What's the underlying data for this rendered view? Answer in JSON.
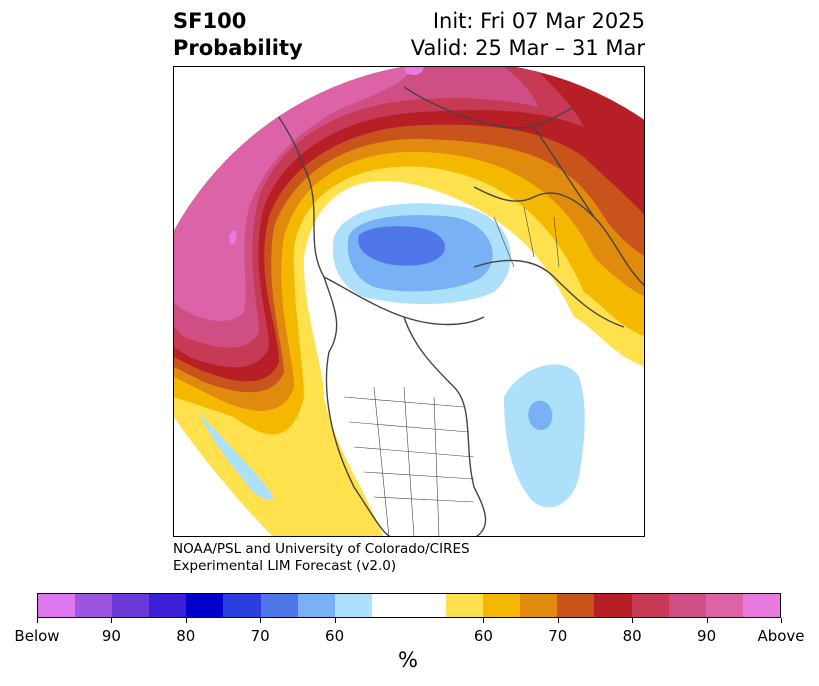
{
  "title": {
    "left_line1": "SF100",
    "left_line2": "Probability",
    "right_line1": "Init: Fri 07 Mar 2025",
    "right_line2": "Valid: 25 Mar – 31 Mar"
  },
  "credit": {
    "line1": "NOAA/PSL and University of Colorado/CIRES",
    "line2": "Experimental LIM Forecast (v2.0)"
  },
  "colorbar": {
    "colors": [
      "#dd77ee",
      "#9d55e0",
      "#6a39d8",
      "#3b1ed7",
      "#0000cc",
      "#2a3fdd",
      "#4f77ea",
      "#78b1f4",
      "#ade0fb",
      "#ffffff",
      "#ffffff",
      "#ffe04d",
      "#f5b800",
      "#e08a0e",
      "#c9541b",
      "#b51f25",
      "#c63a55",
      "#cf4f85",
      "#dd63a9",
      "#e97be0"
    ],
    "labels": [
      "Below",
      "90",
      "80",
      "70",
      "60",
      "60",
      "70",
      "80",
      "90",
      "Above"
    ],
    "unit": "%"
  },
  "colors": {
    "coast": "#444444",
    "below_light": "#ade0fb",
    "below_mid": "#78b1f4",
    "below_dark": "#4f77ea",
    "above_60": "#ffe04d",
    "above_65": "#f5b800",
    "above_70": "#e08a0e",
    "above_75": "#c9541b",
    "above_80": "#b51f25",
    "above_85": "#c63a55",
    "above_90": "#cf4f85",
    "above_95": "#dd63a9",
    "above_max": "#e97be0"
  }
}
